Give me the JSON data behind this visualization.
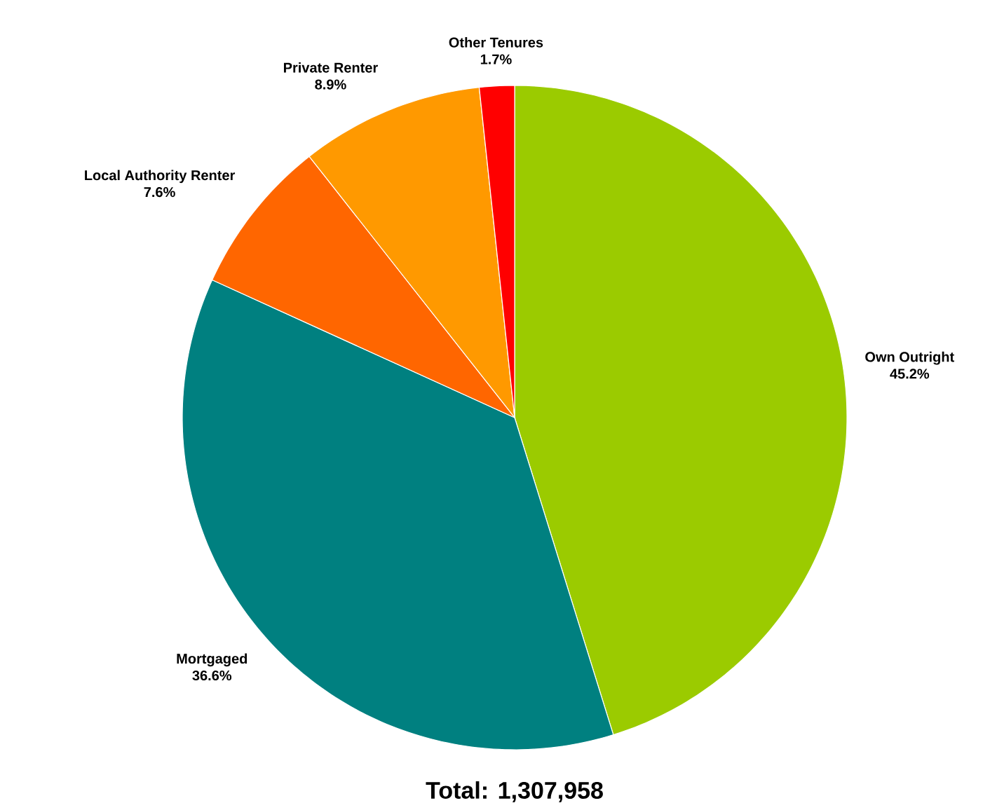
{
  "chart_data": {
    "type": "pie",
    "categories": [
      "Own Outright",
      "Mortgaged",
      "Local Authority Renter",
      "Private Renter",
      "Other Tenures"
    ],
    "values": [
      45.2,
      36.6,
      7.6,
      8.9,
      1.7
    ],
    "colors": [
      "#9bcb00",
      "#008080",
      "#ff6600",
      "#ff9900",
      "#ff0000"
    ],
    "value_labels": [
      "45.2%",
      "36.6%",
      "7.6%",
      "8.9%",
      "1.7%"
    ],
    "annotations": [
      "Total: 1,307,958"
    ]
  }
}
